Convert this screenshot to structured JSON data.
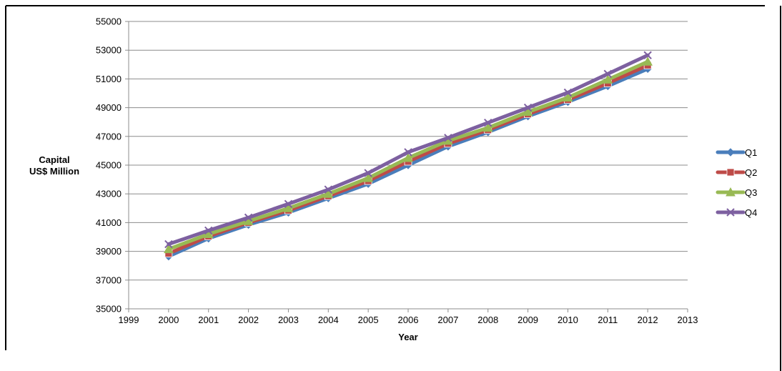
{
  "chart_data": {
    "type": "line",
    "title": "",
    "xlabel": "Year",
    "ylabel_lines": [
      "Capital",
      "US$ Million"
    ],
    "xlim": [
      1999,
      2013
    ],
    "ylim": [
      35000,
      55000
    ],
    "x_ticks": [
      1999,
      2000,
      2001,
      2002,
      2003,
      2004,
      2005,
      2006,
      2007,
      2008,
      2009,
      2010,
      2011,
      2012,
      2013
    ],
    "y_ticks": [
      35000,
      37000,
      39000,
      41000,
      43000,
      45000,
      47000,
      49000,
      51000,
      53000,
      55000
    ],
    "grid": "horizontal",
    "legend_position": "right",
    "x": [
      2000,
      2001,
      2002,
      2003,
      2004,
      2005,
      2006,
      2007,
      2008,
      2009,
      2010,
      2011,
      2012
    ],
    "series": [
      {
        "name": "Q1",
        "color": "#4a7ebb",
        "marker": "diamond",
        "values": [
          38650,
          39900,
          40850,
          41700,
          42700,
          43700,
          45000,
          46300,
          47300,
          48400,
          49400,
          50500,
          51700
        ]
      },
      {
        "name": "Q2",
        "color": "#be4b48",
        "marker": "square",
        "values": [
          38850,
          40050,
          41000,
          41850,
          42850,
          43900,
          45250,
          46500,
          47450,
          48550,
          49550,
          50700,
          51950
        ]
      },
      {
        "name": "Q3",
        "color": "#98b954",
        "marker": "triangle",
        "values": [
          39150,
          40200,
          41100,
          42000,
          43000,
          44100,
          45500,
          46700,
          47600,
          48700,
          49700,
          50950,
          52200
        ]
      },
      {
        "name": "Q4",
        "color": "#7d60a0",
        "marker": "x",
        "values": [
          39500,
          40450,
          41350,
          42300,
          43300,
          44450,
          45900,
          46900,
          47950,
          49000,
          50050,
          51350,
          52650
        ]
      }
    ]
  }
}
